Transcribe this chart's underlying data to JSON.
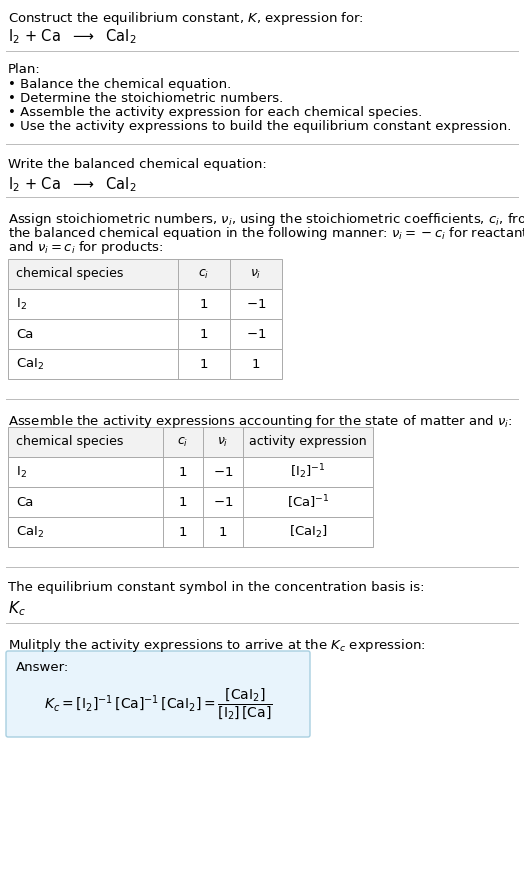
{
  "title_line1": "Construct the equilibrium constant, $K$, expression for:",
  "title_line2": "$\\mathrm{I_2}$ + Ca  $\\longrightarrow$  $\\mathrm{CaI_2}$",
  "plan_header": "Plan:",
  "plan_items": [
    "• Balance the chemical equation.",
    "• Determine the stoichiometric numbers.",
    "• Assemble the activity expression for each chemical species.",
    "• Use the activity expressions to build the equilibrium constant expression."
  ],
  "section2_header": "Write the balanced chemical equation:",
  "section2_eq": "$\\mathrm{I_2}$ + Ca  $\\longrightarrow$  $\\mathrm{CaI_2}$",
  "section3_header_parts": [
    "Assign stoichiometric numbers, $\\nu_i$, using the stoichiometric coefficients, $c_i$, from",
    "the balanced chemical equation in the following manner: $\\nu_i = -c_i$ for reactants",
    "and $\\nu_i = c_i$ for products:"
  ],
  "table1_headers": [
    "chemical species",
    "$c_i$",
    "$\\nu_i$"
  ],
  "table1_rows": [
    [
      "$\\mathrm{I_2}$",
      "1",
      "$-1$"
    ],
    [
      "Ca",
      "1",
      "$-1$"
    ],
    [
      "$\\mathrm{CaI_2}$",
      "1",
      "1"
    ]
  ],
  "section4_header": "Assemble the activity expressions accounting for the state of matter and $\\nu_i$:",
  "table2_headers": [
    "chemical species",
    "$c_i$",
    "$\\nu_i$",
    "activity expression"
  ],
  "table2_rows": [
    [
      "$\\mathrm{I_2}$",
      "1",
      "$-1$",
      "$[\\mathrm{I_2}]^{-1}$"
    ],
    [
      "Ca",
      "1",
      "$-1$",
      "$[\\mathrm{Ca}]^{-1}$"
    ],
    [
      "$\\mathrm{CaI_2}$",
      "1",
      "1",
      "$[\\mathrm{CaI_2}]$"
    ]
  ],
  "section5_text": "The equilibrium constant symbol in the concentration basis is:",
  "section5_symbol": "$K_c$",
  "section6_header": "Mulitply the activity expressions to arrive at the $K_c$ expression:",
  "answer_label": "Answer:",
  "answer_line1": "$K_c = [\\mathrm{I_2}]^{-1}\\,[\\mathrm{Ca}]^{-1}\\,[\\mathrm{CaI_2}] = \\dfrac{[\\mathrm{CaI_2}]}{[\\mathrm{I_2}]\\,[\\mathrm{Ca}]}$",
  "bg_color": "#ffffff",
  "table_bg": "#ffffff",
  "answer_box_bg": "#e8f4fc",
  "answer_box_border": "#a8cfe0",
  "divider_color": "#bbbbbb",
  "text_color": "#000000",
  "table_header_bg": "#f2f2f2",
  "table_border_color": "#aaaaaa"
}
